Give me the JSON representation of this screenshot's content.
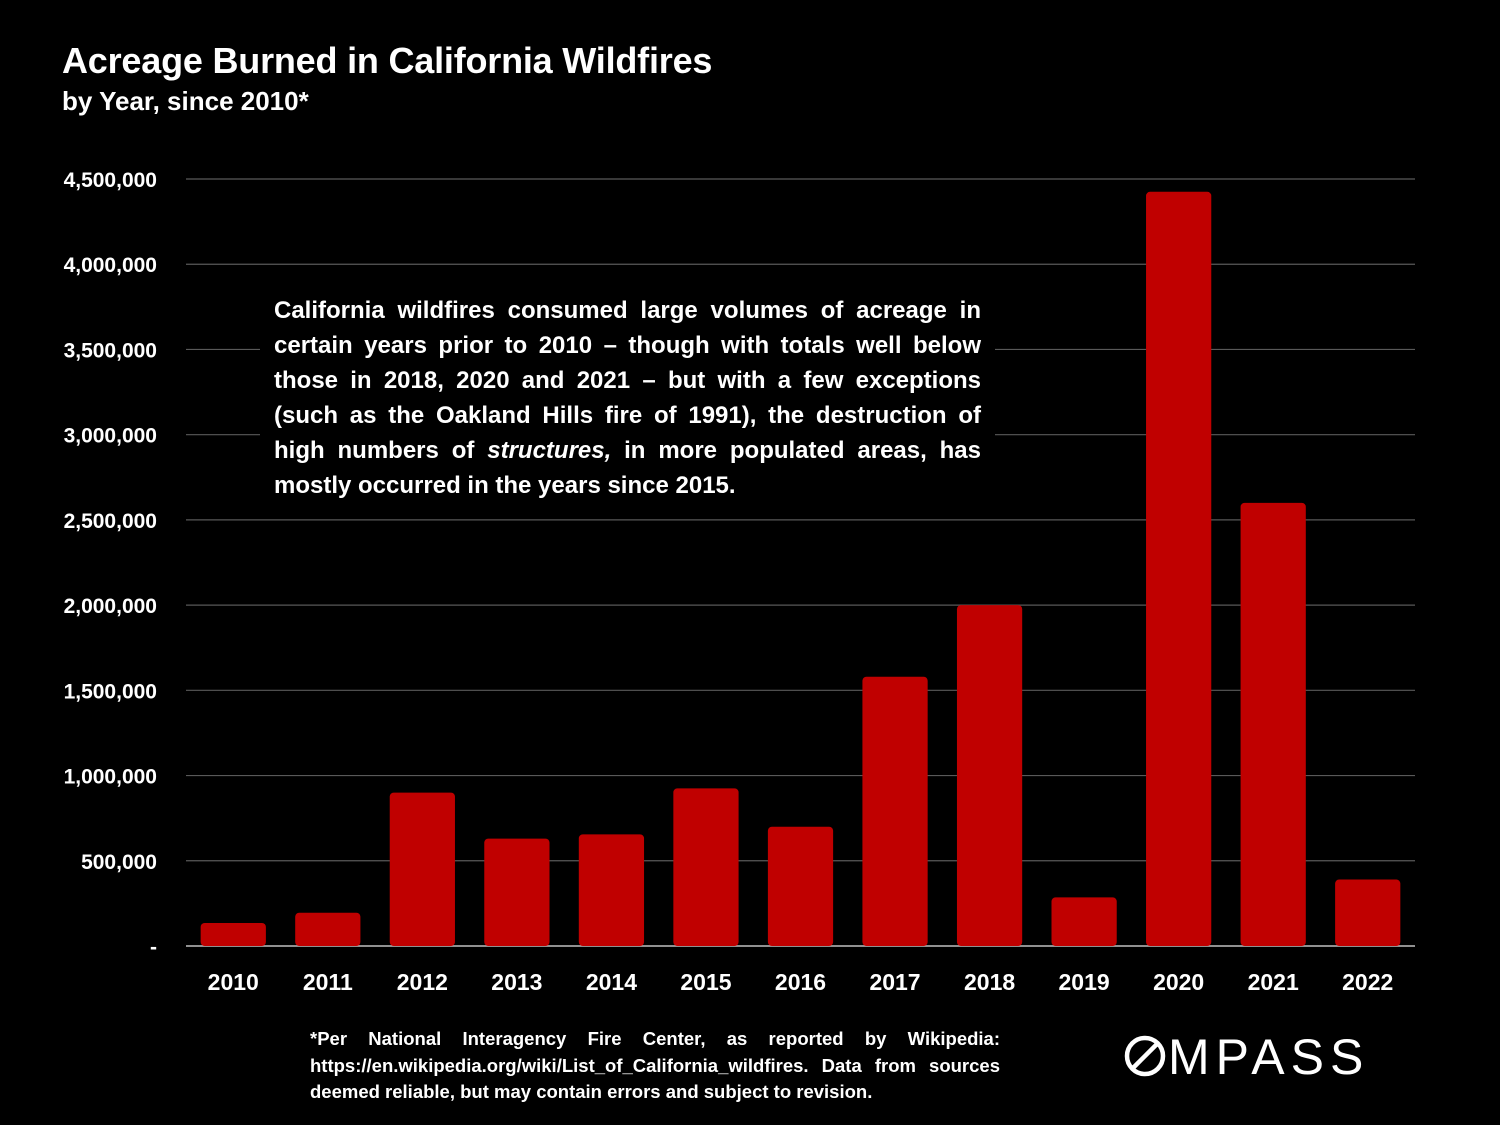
{
  "chart_data": {
    "type": "bar",
    "title": "Acreage Burned in California Wildfires",
    "subtitle": "by Year, since 2010*",
    "categories": [
      "2010",
      "2011",
      "2012",
      "2013",
      "2014",
      "2015",
      "2016",
      "2017",
      "2018",
      "2019",
      "2020",
      "2021",
      "2022"
    ],
    "values": [
      135000,
      195000,
      900000,
      630000,
      655000,
      925000,
      700000,
      1580000,
      2000000,
      285000,
      4425000,
      2600000,
      390000
    ],
    "ylim": [
      0,
      4500000
    ],
    "yticks": [
      0,
      500000,
      1000000,
      1500000,
      2000000,
      2500000,
      3000000,
      3500000,
      4000000,
      4500000
    ],
    "ytick_labels": [
      "-",
      "500,000",
      "1,000,000",
      "1,500,000",
      "2,000,000",
      "2,500,000",
      "3,000,000",
      "3,500,000",
      "4,000,000",
      "4,500,000"
    ],
    "xlabel": "",
    "ylabel": "",
    "grid": true,
    "legend": "none",
    "bar_color": "#c00000",
    "gridline_color": "#595959",
    "background_color": "#000000",
    "text_color": "#ffffff"
  },
  "annotation": {
    "before": "California wildfires consumed large volumes of acreage in certain years prior to 2010 – though with totals well below those in 2018, 2020 and 2021 – but with a few exceptions (such as the Oakland Hills fire of 1991), the destruction of high numbers of ",
    "emphasis": "structures,",
    "after": " in more populated areas, has mostly occurred in the years since 2015."
  },
  "footnote": "*Per National Interagency Fire Center, as reported by Wikipedia: https://en.wikipedia.org/wiki/List_of_California_wildfires. Data from sources deemed reliable, but may contain errors and subject to revision.",
  "logo": {
    "text": "COMPASS",
    "icon": "compass-o-icon"
  }
}
